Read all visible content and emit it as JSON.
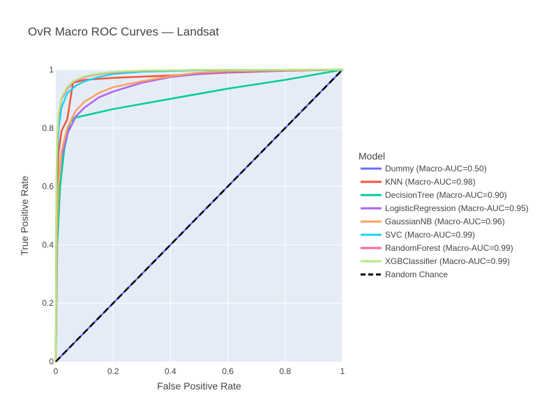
{
  "chart_data": {
    "type": "line",
    "title": "OvR Macro ROC Curves — Landsat",
    "xlabel": "False Positive Rate",
    "ylabel": "True Positive Rate",
    "xlim": [
      0,
      1
    ],
    "ylim": [
      0,
      1
    ],
    "xticks": [
      0,
      0.2,
      0.4,
      0.6,
      0.8,
      1
    ],
    "xtick_labels": [
      "0",
      "0.2",
      "0.4",
      "0.6",
      "0.8",
      "1"
    ],
    "yticks": [
      0,
      0.2,
      0.4,
      0.6,
      0.8,
      1
    ],
    "ytick_labels": [
      "0",
      "0.2",
      "0.4",
      "0.6",
      "0.8",
      "1"
    ],
    "grid": true,
    "legend": {
      "title": "Model",
      "placement": "right"
    },
    "series": [
      {
        "name": "Dummy (Macro-AUC=0.50)",
        "color": "#636efa",
        "dash": "solid",
        "x": [
          0,
          1
        ],
        "y": [
          0,
          1
        ]
      },
      {
        "name": "KNN (Macro-AUC=0.98)",
        "color": "#ef553b",
        "dash": "solid",
        "x": [
          0,
          0.002,
          0.005,
          0.01,
          0.02,
          0.04,
          0.06,
          0.1,
          0.2,
          0.4,
          0.6,
          0.8,
          1
        ],
        "y": [
          0,
          0.38,
          0.62,
          0.72,
          0.79,
          0.83,
          0.955,
          0.965,
          0.972,
          0.98,
          0.99,
          0.996,
          1
        ]
      },
      {
        "name": "DecisionTree (Macro-AUC=0.90)",
        "color": "#00cc96",
        "dash": "solid",
        "x": [
          0,
          0.005,
          0.015,
          0.03,
          0.05,
          0.065,
          0.2,
          0.4,
          0.6,
          0.8,
          1
        ],
        "y": [
          0,
          0.4,
          0.6,
          0.73,
          0.82,
          0.835,
          0.865,
          0.9,
          0.935,
          0.965,
          1
        ]
      },
      {
        "name": "LogisticRegression (Macro-AUC=0.95)",
        "color": "#ab63fa",
        "dash": "solid",
        "x": [
          0,
          0.005,
          0.01,
          0.02,
          0.04,
          0.07,
          0.1,
          0.15,
          0.2,
          0.3,
          0.4,
          0.5,
          0.6,
          0.8,
          1
        ],
        "y": [
          0,
          0.5,
          0.62,
          0.7,
          0.78,
          0.84,
          0.87,
          0.905,
          0.925,
          0.955,
          0.975,
          0.985,
          0.992,
          0.997,
          1
        ]
      },
      {
        "name": "GaussianNB (Macro-AUC=0.96)",
        "color": "#ffa15a",
        "dash": "solid",
        "x": [
          0,
          0.004,
          0.01,
          0.02,
          0.04,
          0.07,
          0.1,
          0.15,
          0.2,
          0.3,
          0.4,
          0.5,
          0.6,
          0.8,
          1
        ],
        "y": [
          0,
          0.45,
          0.62,
          0.72,
          0.8,
          0.86,
          0.89,
          0.92,
          0.94,
          0.96,
          0.978,
          0.99,
          0.995,
          0.998,
          1
        ]
      },
      {
        "name": "SVC (Macro-AUC=0.99)",
        "color": "#19d3f3",
        "dash": "solid",
        "x": [
          0,
          0.002,
          0.005,
          0.01,
          0.02,
          0.04,
          0.07,
          0.1,
          0.15,
          0.2,
          0.3,
          0.5,
          1
        ],
        "y": [
          0,
          0.55,
          0.7,
          0.8,
          0.87,
          0.92,
          0.945,
          0.96,
          0.975,
          0.985,
          0.993,
          0.998,
          1
        ]
      },
      {
        "name": "RandomForest (Macro-AUC=0.99)",
        "color": "#ff6692",
        "dash": "solid",
        "x": [
          0,
          0.002,
          0.005,
          0.01,
          0.02,
          0.04,
          0.06,
          0.1,
          0.15,
          0.2,
          0.3,
          0.5,
          1
        ],
        "y": [
          0,
          0.6,
          0.75,
          0.84,
          0.9,
          0.935,
          0.955,
          0.975,
          0.985,
          0.99,
          0.996,
          0.999,
          1
        ]
      },
      {
        "name": "XGBClassifier (Macro-AUC=0.99)",
        "color": "#b6e880",
        "dash": "solid",
        "x": [
          0,
          0.002,
          0.005,
          0.01,
          0.02,
          0.04,
          0.06,
          0.1,
          0.15,
          0.2,
          0.3,
          0.5,
          1
        ],
        "y": [
          0,
          0.62,
          0.77,
          0.85,
          0.905,
          0.94,
          0.96,
          0.977,
          0.987,
          0.992,
          0.997,
          0.999,
          1
        ]
      },
      {
        "name": "Random Chance",
        "color": "#000000",
        "dash": "dash",
        "x": [
          0,
          1
        ],
        "y": [
          0,
          1
        ]
      }
    ]
  }
}
